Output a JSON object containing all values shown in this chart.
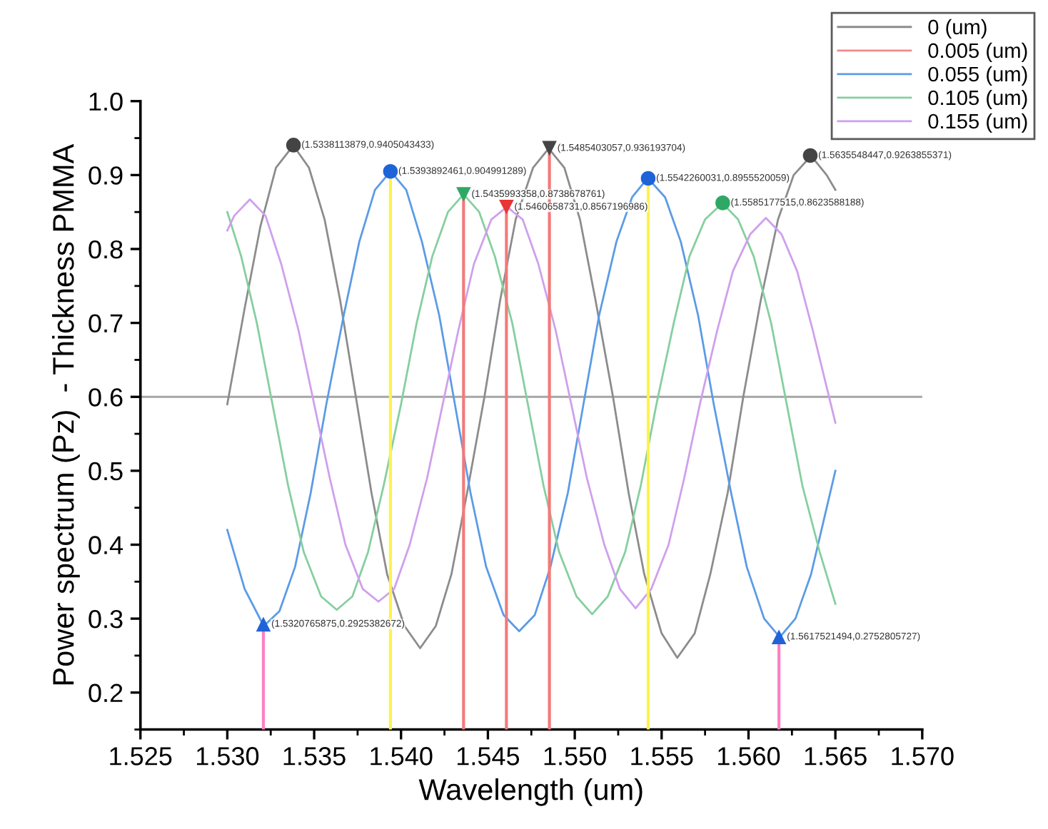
{
  "chart_data": {
    "type": "line",
    "xlabel": "Wavelength (um)",
    "ylabel": "Power spectrum (Pz)  - Thickness PMMA",
    "xlim": [
      1.525,
      1.57
    ],
    "xticks": [
      {
        "value": 1.525,
        "label": "1.525"
      },
      {
        "value": 1.53,
        "label": "1.530"
      },
      {
        "value": 1.535,
        "label": "1.535"
      },
      {
        "value": 1.54,
        "label": "1.540"
      },
      {
        "value": 1.545,
        "label": "1.545"
      },
      {
        "value": 1.55,
        "label": "1.550"
      },
      {
        "value": 1.555,
        "label": "1.555"
      },
      {
        "value": 1.56,
        "label": "1.560"
      },
      {
        "value": 1.565,
        "label": "1.565"
      },
      {
        "value": 1.57,
        "label": "1.570"
      }
    ],
    "ylim": [
      0.15,
      1.0
    ],
    "yticks": [
      0.2,
      0.3,
      0.4,
      0.5,
      0.6,
      0.7,
      0.8,
      0.9,
      {
        "value": 1.0,
        "label": "1.0"
      }
    ],
    "legend": "top right",
    "grid": false,
    "series": [
      {
        "name": "0 (um)",
        "color": "#8c8c8c",
        "x": [
          1.53,
          1.531,
          1.5319,
          1.5328,
          1.5338,
          1.5347,
          1.5356,
          1.5365,
          1.5374,
          1.5383,
          1.5392,
          1.5402,
          1.5411,
          1.542,
          1.5429,
          1.5438,
          1.5448,
          1.5457,
          1.5466,
          1.5476,
          1.5485,
          1.5494,
          1.5503,
          1.5512,
          1.5522,
          1.5531,
          1.554,
          1.555,
          1.5559,
          1.5569,
          1.5578,
          1.5588,
          1.5597,
          1.5607,
          1.5617,
          1.5626,
          1.5636,
          1.5645,
          1.565
        ],
        "values": [
          0.59,
          0.72,
          0.83,
          0.91,
          0.94,
          0.91,
          0.84,
          0.73,
          0.6,
          0.47,
          0.36,
          0.29,
          0.26,
          0.29,
          0.36,
          0.47,
          0.6,
          0.73,
          0.84,
          0.91,
          0.936,
          0.91,
          0.84,
          0.73,
          0.6,
          0.47,
          0.36,
          0.28,
          0.247,
          0.28,
          0.36,
          0.47,
          0.6,
          0.73,
          0.84,
          0.9,
          0.926,
          0.9,
          0.88
        ]
      },
      {
        "name": "0.005 (um)",
        "color": "#f28b8b"
      },
      {
        "name": "0.055 (um)",
        "color": "#5b9be6",
        "x": [
          1.53,
          1.531,
          1.5321,
          1.533,
          1.5339,
          1.5348,
          1.5357,
          1.5367,
          1.5376,
          1.5385,
          1.5394,
          1.5403,
          1.5412,
          1.5422,
          1.5431,
          1.544,
          1.5449,
          1.5459,
          1.5468,
          1.5477,
          1.5486,
          1.5496,
          1.5505,
          1.5514,
          1.5524,
          1.5533,
          1.5542,
          1.5552,
          1.5561,
          1.5571,
          1.558,
          1.559,
          1.5599,
          1.5609,
          1.5618,
          1.5627,
          1.5636,
          1.5645,
          1.565
        ],
        "values": [
          0.42,
          0.34,
          0.29,
          0.31,
          0.37,
          0.47,
          0.59,
          0.71,
          0.81,
          0.88,
          0.905,
          0.88,
          0.81,
          0.71,
          0.59,
          0.47,
          0.37,
          0.305,
          0.283,
          0.305,
          0.37,
          0.47,
          0.59,
          0.71,
          0.81,
          0.87,
          0.896,
          0.87,
          0.81,
          0.71,
          0.59,
          0.47,
          0.37,
          0.3,
          0.275,
          0.3,
          0.36,
          0.45,
          0.5
        ]
      },
      {
        "name": "0.105 (um)",
        "color": "#86cf9f",
        "x": [
          1.53,
          1.5308,
          1.5317,
          1.5326,
          1.5335,
          1.5344,
          1.5354,
          1.5363,
          1.5372,
          1.5381,
          1.539,
          1.54,
          1.5409,
          1.5418,
          1.5427,
          1.5436,
          1.5445,
          1.5454,
          1.5464,
          1.5473,
          1.5482,
          1.5491,
          1.5501,
          1.551,
          1.5519,
          1.5529,
          1.5538,
          1.5547,
          1.5557,
          1.5566,
          1.5575,
          1.5585,
          1.5594,
          1.5603,
          1.5613,
          1.5622,
          1.5631,
          1.5641,
          1.565
        ],
        "values": [
          0.85,
          0.79,
          0.7,
          0.59,
          0.48,
          0.39,
          0.33,
          0.312,
          0.33,
          0.39,
          0.48,
          0.59,
          0.7,
          0.79,
          0.85,
          0.874,
          0.85,
          0.79,
          0.7,
          0.59,
          0.48,
          0.39,
          0.33,
          0.306,
          0.33,
          0.39,
          0.48,
          0.59,
          0.7,
          0.79,
          0.84,
          0.862,
          0.84,
          0.79,
          0.7,
          0.59,
          0.48,
          0.39,
          0.32
        ]
      },
      {
        "name": "0.155 (um)",
        "color": "#cfa0ec",
        "x": [
          1.53,
          1.5304,
          1.5313,
          1.5322,
          1.5331,
          1.5341,
          1.535,
          1.5359,
          1.5368,
          1.5378,
          1.5387,
          1.5396,
          1.5405,
          1.5415,
          1.5424,
          1.5433,
          1.5442,
          1.5452,
          1.5461,
          1.547,
          1.5479,
          1.5489,
          1.5498,
          1.5507,
          1.5517,
          1.5526,
          1.5535,
          1.5544,
          1.5554,
          1.5563,
          1.5572,
          1.5582,
          1.5591,
          1.5601,
          1.561,
          1.5619,
          1.5628,
          1.5637,
          1.565
        ],
        "values": [
          0.825,
          0.845,
          0.867,
          0.845,
          0.78,
          0.69,
          0.59,
          0.49,
          0.4,
          0.34,
          0.323,
          0.34,
          0.4,
          0.49,
          0.59,
          0.69,
          0.78,
          0.84,
          0.857,
          0.84,
          0.78,
          0.69,
          0.59,
          0.49,
          0.4,
          0.34,
          0.314,
          0.34,
          0.4,
          0.49,
          0.59,
          0.69,
          0.77,
          0.82,
          0.842,
          0.82,
          0.77,
          0.69,
          0.565
        ]
      },
      {
        "type": "lollipop",
        "color": "#ff7fc4",
        "colors": [
          "#1f63d8",
          "#1f63d8"
        ],
        "marker": "triangle",
        "x": [
          1.5320765875,
          1.5617521494
        ],
        "values": [
          0.2925382672,
          0.2752805727
        ]
      },
      {
        "type": "lollipop",
        "color": "#fff24a",
        "colors": [
          "#1f63d8",
          "#1f63d8"
        ],
        "marker": "circle",
        "x": [
          1.5393892461,
          1.5542260031
        ],
        "values": [
          0.904991289,
          0.8955520059
        ]
      },
      {
        "type": "lollipop",
        "color": "#f27a7a",
        "colors": [
          "#2ea866",
          "#e83535",
          "#444444"
        ],
        "marker": "triangle_down",
        "x": [
          1.5435993358,
          1.5460658731,
          1.5485403057
        ],
        "values": [
          0.8738678761,
          0.8567196986,
          0.936193704
        ]
      },
      {
        "type": "scatter",
        "colors": [
          "#444444",
          "#444444"
        ],
        "marker": "circle",
        "x": [
          1.5338113879,
          1.5635548447
        ],
        "values": [
          0.9405043433,
          0.9263855371
        ]
      },
      {
        "type": "scatter",
        "colors": [
          "#2ea866"
        ],
        "marker": "circle",
        "x": [
          1.5585177515
        ],
        "values": [
          0.8623588188
        ]
      }
    ],
    "ref_lines": [
      {
        "axis": "y",
        "value": 0.6,
        "color": "#a6a6a6"
      }
    ],
    "annotations": [
      {
        "text": "(1.5338113879,0.9405043433)",
        "x": 1.5338113879,
        "y": 0.9405043433
      },
      {
        "text": "(1.5393892461,0.904991289)",
        "x": 1.5393892461,
        "y": 0.904991289
      },
      {
        "text": "(1.5435993358,0.8738678761)",
        "x": 1.5435993358,
        "y": 0.8738678761
      },
      {
        "text": "(1.5460658731,0.8567196986)",
        "x": 1.5460658731,
        "y": 0.8567196986
      },
      {
        "text": "(1.5485403057,0.936193704)",
        "x": 1.5485403057,
        "y": 0.936193704
      },
      {
        "text": "(1.5542260031,0.8955520059)",
        "x": 1.5542260031,
        "y": 0.8955520059
      },
      {
        "text": "(1.5585177515,0.8623588188)",
        "x": 1.5585177515,
        "y": 0.8623588188
      },
      {
        "text": "(1.5635548447,0.9263855371)",
        "x": 1.5635548447,
        "y": 0.9263855371
      },
      {
        "text": "(1.5320765875,0.2925382672)",
        "x": 1.5320765875,
        "y": 0.2925382672
      },
      {
        "text": "(1.5617521494,0.2752805727)",
        "x": 1.5617521494,
        "y": 0.2752805727
      }
    ]
  }
}
